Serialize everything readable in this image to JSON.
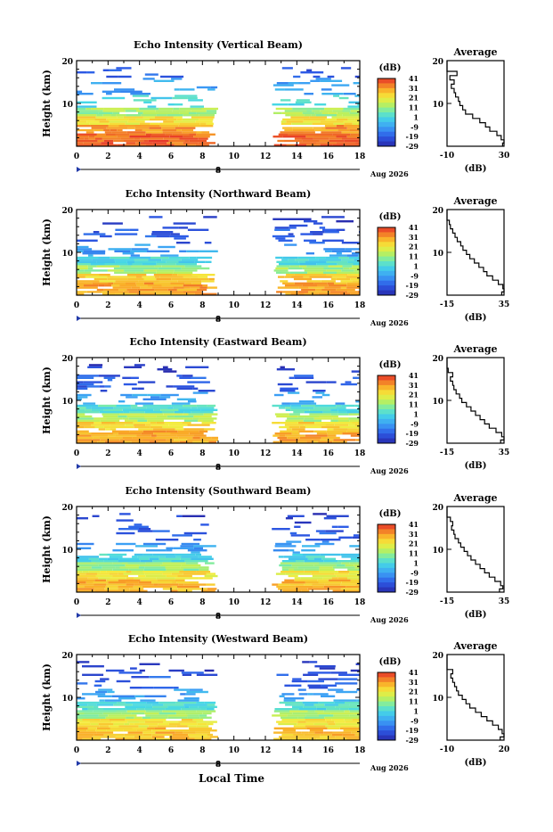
{
  "footer": {
    "xlabel": "Local Time"
  },
  "chart_data": [
    {
      "type": "heatmap",
      "title": "Echo Intensity (Vertical Beam)",
      "ylabel": "Height (km)",
      "xlim": [
        0,
        18
      ],
      "ylim": [
        0,
        20
      ],
      "x_ticks": [
        "0",
        "2",
        "4",
        "6",
        "8",
        "10",
        "12",
        "14",
        "16",
        "18"
      ],
      "y_ticks": [
        "20",
        "10"
      ],
      "date_label": "8",
      "date_suffix": "Aug 2026",
      "colorbar": {
        "unit": "(dB)",
        "ticks": [
          "41",
          "31",
          "21",
          "11",
          "1",
          "-9",
          "-19",
          "-29"
        ],
        "range": [
          -29,
          41
        ]
      },
      "gaps": [
        [
          9.0,
          12.4
        ]
      ],
      "layers": [
        {
          "y": [
            0,
            3
          ],
          "dB": 36
        },
        {
          "y": [
            3,
            5
          ],
          "dB": 31
        },
        {
          "y": [
            5,
            7
          ],
          "dB": 22
        },
        {
          "y": [
            7,
            9
          ],
          "dB": 12
        },
        {
          "y": [
            9,
            12
          ],
          "dB": 1
        },
        {
          "y": [
            12,
            16
          ],
          "dB": -9
        },
        {
          "y": [
            16,
            18.5
          ],
          "dB": -19
        }
      ],
      "average_profile": {
        "title": "Average",
        "xlabel": "(dB)",
        "xlim": [
          -10,
          30
        ],
        "ylim": [
          0,
          20
        ],
        "x_ticks": [
          "-10",
          "30"
        ],
        "y_ticks": [
          "20",
          "10"
        ],
        "height": [
          0.5,
          1,
          2,
          3,
          4,
          5,
          6,
          7,
          8,
          9,
          10,
          11,
          12,
          13,
          14,
          15,
          16,
          17,
          18,
          19
        ],
        "dB": [
          29,
          30,
          28,
          25,
          20,
          17,
          13,
          8,
          3,
          1,
          -1,
          -2,
          -4,
          -5,
          -7,
          -5,
          -8,
          -3,
          -10,
          -10
        ]
      }
    },
    {
      "type": "heatmap",
      "title": "Echo Intensity (Northward Beam)",
      "ylabel": "Height (km)",
      "xlim": [
        0,
        18
      ],
      "ylim": [
        0,
        20
      ],
      "x_ticks": [
        "0",
        "2",
        "4",
        "6",
        "8",
        "10",
        "12",
        "14",
        "16",
        "18"
      ],
      "y_ticks": [
        "20",
        "10"
      ],
      "date_label": "8",
      "date_suffix": "Aug 2026",
      "colorbar": {
        "unit": "(dB)",
        "ticks": [
          "41",
          "31",
          "21",
          "11",
          "1",
          "-9",
          "-19",
          "-29"
        ],
        "range": [
          -29,
          41
        ]
      },
      "gaps": [
        [
          9.0,
          12.4
        ]
      ],
      "layers": [
        {
          "y": [
            0,
            3
          ],
          "dB": 30
        },
        {
          "y": [
            3,
            5
          ],
          "dB": 25
        },
        {
          "y": [
            5,
            7
          ],
          "dB": 12
        },
        {
          "y": [
            7,
            9
          ],
          "dB": 1
        },
        {
          "y": [
            9,
            12
          ],
          "dB": -9
        },
        {
          "y": [
            12,
            16
          ],
          "dB": -19
        },
        {
          "y": [
            16,
            18.5
          ],
          "dB": -24
        }
      ],
      "average_profile": {
        "title": "Average",
        "xlabel": "(dB)",
        "xlim": [
          -15,
          35
        ],
        "ylim": [
          0,
          20
        ],
        "x_ticks": [
          "-15",
          "35"
        ],
        "y_ticks": [
          "20",
          "10"
        ],
        "height": [
          0.5,
          1,
          2,
          3,
          4,
          5,
          6,
          7,
          8,
          9,
          10,
          11,
          12,
          13,
          14,
          15,
          16,
          17,
          18,
          19
        ],
        "dB": [
          33,
          35,
          34,
          30,
          25,
          20,
          17,
          13,
          9,
          5,
          2,
          -1,
          -3,
          -6,
          -8,
          -10,
          -12,
          -13,
          -15,
          -15
        ]
      }
    },
    {
      "type": "heatmap",
      "title": "Echo Intensity (Eastward Beam)",
      "ylabel": "Height (km)",
      "xlim": [
        0,
        18
      ],
      "ylim": [
        0,
        20
      ],
      "x_ticks": [
        "0",
        "2",
        "4",
        "6",
        "8",
        "10",
        "12",
        "14",
        "16",
        "18"
      ],
      "y_ticks": [
        "20",
        "10"
      ],
      "date_label": "8",
      "date_suffix": "Aug 2026",
      "colorbar": {
        "unit": "(dB)",
        "ticks": [
          "41",
          "31",
          "21",
          "11",
          "1",
          "-9",
          "-19",
          "-29"
        ],
        "range": [
          -29,
          41
        ]
      },
      "gaps": [
        [
          9.0,
          12.4
        ]
      ],
      "layers": [
        {
          "y": [
            0,
            3
          ],
          "dB": 29
        },
        {
          "y": [
            3,
            5
          ],
          "dB": 24
        },
        {
          "y": [
            5,
            7
          ],
          "dB": 13
        },
        {
          "y": [
            7,
            9
          ],
          "dB": 3
        },
        {
          "y": [
            9,
            12
          ],
          "dB": -9
        },
        {
          "y": [
            12,
            16
          ],
          "dB": -19
        },
        {
          "y": [
            16,
            18.5
          ],
          "dB": -24
        }
      ],
      "average_profile": {
        "title": "Average",
        "xlabel": "(dB)",
        "xlim": [
          -15,
          35
        ],
        "ylim": [
          0,
          20
        ],
        "x_ticks": [
          "-15",
          "35"
        ],
        "y_ticks": [
          "20",
          "10"
        ],
        "height": [
          0.5,
          1,
          2,
          3,
          4,
          5,
          6,
          7,
          8,
          9,
          10,
          11,
          12,
          13,
          14,
          15,
          16,
          17,
          18,
          19
        ],
        "dB": [
          32,
          35,
          33,
          28,
          22,
          18,
          14,
          10,
          6,
          2,
          -2,
          -4,
          -7,
          -9,
          -10,
          -12,
          -10,
          -14,
          -15,
          -15
        ]
      }
    },
    {
      "type": "heatmap",
      "title": "Echo Intensity (Southward Beam)",
      "ylabel": "Height (km)",
      "xlim": [
        0,
        18
      ],
      "ylim": [
        0,
        20
      ],
      "x_ticks": [
        "0",
        "2",
        "4",
        "6",
        "8",
        "10",
        "12",
        "14",
        "16",
        "18"
      ],
      "y_ticks": [
        "20",
        "10"
      ],
      "date_label": "8",
      "date_suffix": "Aug 2026",
      "colorbar": {
        "unit": "(dB)",
        "ticks": [
          "41",
          "31",
          "21",
          "11",
          "1",
          "-9",
          "-19",
          "-29"
        ],
        "range": [
          -29,
          41
        ]
      },
      "gaps": [
        [
          9.0,
          12.4
        ]
      ],
      "layers": [
        {
          "y": [
            0,
            3
          ],
          "dB": 28
        },
        {
          "y": [
            3,
            5
          ],
          "dB": 22
        },
        {
          "y": [
            5,
            7
          ],
          "dB": 11
        },
        {
          "y": [
            7,
            9
          ],
          "dB": 1
        },
        {
          "y": [
            9,
            12
          ],
          "dB": -9
        },
        {
          "y": [
            12,
            16
          ],
          "dB": -19
        },
        {
          "y": [
            16,
            18.5
          ],
          "dB": -24
        }
      ],
      "average_profile": {
        "title": "Average",
        "xlabel": "(dB)",
        "xlim": [
          -15,
          35
        ],
        "ylim": [
          0,
          20
        ],
        "x_ticks": [
          "-15",
          "35"
        ],
        "y_ticks": [
          "20",
          "10"
        ],
        "height": [
          0.5,
          1,
          2,
          3,
          4,
          5,
          6,
          7,
          8,
          9,
          10,
          11,
          12,
          13,
          14,
          15,
          16,
          17,
          18,
          19
        ],
        "dB": [
          31,
          34,
          32,
          27,
          22,
          18,
          14,
          10,
          6,
          3,
          0,
          -3,
          -5,
          -8,
          -9,
          -11,
          -10,
          -12,
          -15,
          -15
        ]
      }
    },
    {
      "type": "heatmap",
      "title": "Echo Intensity (Westward Beam)",
      "ylabel": "Height (km)",
      "xlim": [
        0,
        18
      ],
      "ylim": [
        0,
        20
      ],
      "x_ticks": [
        "0",
        "2",
        "4",
        "6",
        "8",
        "10",
        "12",
        "14",
        "16",
        "18"
      ],
      "y_ticks": [
        "20",
        "10"
      ],
      "date_label": "8",
      "date_suffix": "Aug 2026",
      "colorbar": {
        "unit": "(dB)",
        "ticks": [
          "41",
          "31",
          "21",
          "11",
          "1",
          "-9",
          "-19",
          "-29"
        ],
        "range": [
          -29,
          41
        ]
      },
      "gaps": [
        [
          9.0,
          12.4
        ]
      ],
      "layers": [
        {
          "y": [
            0,
            3
          ],
          "dB": 27
        },
        {
          "y": [
            3,
            5
          ],
          "dB": 22
        },
        {
          "y": [
            5,
            7
          ],
          "dB": 12
        },
        {
          "y": [
            7,
            9
          ],
          "dB": 2
        },
        {
          "y": [
            9,
            12
          ],
          "dB": -9
        },
        {
          "y": [
            12,
            16
          ],
          "dB": -19
        },
        {
          "y": [
            16,
            18.5
          ],
          "dB": -24
        }
      ],
      "average_profile": {
        "title": "Average",
        "xlabel": "(dB)",
        "xlim": [
          -10,
          20
        ],
        "ylim": [
          0,
          20
        ],
        "x_ticks": [
          "-10",
          "20"
        ],
        "y_ticks": [
          "20",
          "10"
        ],
        "height": [
          0.5,
          1,
          2,
          3,
          4,
          5,
          6,
          7,
          8,
          9,
          10,
          11,
          12,
          13,
          14,
          15,
          16,
          17,
          18,
          19
        ],
        "dB": [
          18,
          20,
          19,
          17,
          14,
          11,
          8,
          5,
          2,
          0,
          -2,
          -4,
          -5,
          -6,
          -7,
          -8,
          -7,
          -10,
          -10,
          -10
        ]
      }
    }
  ]
}
